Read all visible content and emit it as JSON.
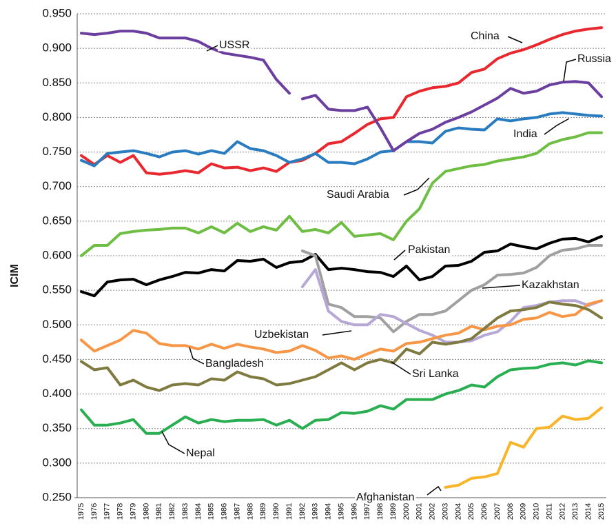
{
  "chart_data": {
    "type": "line",
    "y_label": "ICIM",
    "categories": [
      "1975",
      "1976",
      "1977",
      "1978",
      "1979",
      "1980",
      "1981",
      "1982",
      "1983",
      "1984",
      "1985",
      "1986",
      "1987",
      "1988",
      "1989",
      "1990",
      "1991",
      "1992",
      "1993",
      "1994",
      "1995",
      "1996",
      "1997",
      "1998",
      "1999",
      "2000",
      "2001",
      "2002",
      "2003",
      "2004",
      "2005",
      "2006",
      "2007",
      "2008",
      "2009",
      "2010",
      "2011",
      "2012",
      "2013",
      "2014",
      "2015"
    ],
    "ylim": [
      0.25,
      0.95
    ],
    "yticks": [
      {
        "value": 0.25,
        "label": "0.250"
      },
      {
        "value": 0.3,
        "label": "0.300"
      },
      {
        "value": 0.35,
        "label": "0.350"
      },
      {
        "value": 0.4,
        "label": "0.400"
      },
      {
        "value": 0.45,
        "label": "0.450"
      },
      {
        "value": 0.5,
        "label": "0.500"
      },
      {
        "value": 0.55,
        "label": "0.550"
      },
      {
        "value": 0.6,
        "label": "0.600"
      },
      {
        "value": 0.65,
        "label": "0.650"
      },
      {
        "value": 0.7,
        "label": "0.700"
      },
      {
        "value": 0.75,
        "label": "0.750"
      },
      {
        "value": 0.8,
        "label": "0.800"
      },
      {
        "value": 0.85,
        "label": "0.850"
      },
      {
        "value": 0.9,
        "label": "0.900"
      },
      {
        "value": 0.95,
        "label": "0.950"
      }
    ],
    "grid": true,
    "series": [
      {
        "name": "China",
        "color": "#e8282e",
        "values": [
          0.745,
          0.732,
          0.745,
          0.735,
          0.745,
          0.72,
          0.718,
          0.72,
          0.723,
          0.72,
          0.733,
          0.727,
          0.728,
          0.723,
          0.727,
          0.722,
          0.735,
          0.738,
          0.748,
          0.762,
          0.765,
          0.777,
          0.79,
          0.798,
          0.8,
          0.83,
          0.838,
          0.843,
          0.845,
          0.85,
          0.865,
          0.87,
          0.885,
          0.893,
          0.898,
          0.905,
          0.913,
          0.92,
          0.925,
          0.928,
          0.93
        ]
      },
      {
        "name": "India",
        "color": "#2a7cc1",
        "values": [
          0.738,
          0.73,
          0.748,
          0.75,
          0.752,
          0.748,
          0.743,
          0.75,
          0.752,
          0.747,
          0.752,
          0.748,
          0.765,
          0.755,
          0.752,
          0.745,
          0.735,
          0.74,
          0.748,
          0.735,
          0.735,
          0.733,
          0.74,
          0.75,
          0.752,
          0.765,
          0.765,
          0.763,
          0.78,
          0.785,
          0.783,
          0.782,
          0.798,
          0.795,
          0.798,
          0.8,
          0.805,
          0.807,
          0.805,
          0.803,
          0.802
        ]
      },
      {
        "name": "USSR",
        "color": "#6b3fa0",
        "values": [
          0.922,
          0.92,
          0.922,
          0.925,
          0.925,
          0.922,
          0.915,
          0.915,
          0.915,
          0.91,
          0.9,
          0.893,
          0.89,
          0.887,
          0.883,
          0.855,
          0.835,
          null,
          null,
          null,
          null,
          null,
          null,
          null,
          null,
          null,
          null,
          null,
          null,
          null,
          null,
          null,
          null,
          null,
          null,
          null,
          null,
          null,
          null,
          null,
          null
        ]
      },
      {
        "name": "Russia",
        "color": "#6b3fa0",
        "values": [
          null,
          null,
          null,
          null,
          null,
          null,
          null,
          null,
          null,
          null,
          null,
          null,
          null,
          null,
          null,
          null,
          null,
          0.827,
          0.832,
          0.812,
          0.81,
          0.81,
          0.815,
          0.785,
          0.752,
          0.765,
          0.777,
          0.783,
          0.793,
          0.8,
          0.808,
          0.818,
          0.828,
          0.842,
          0.835,
          0.838,
          0.847,
          0.851,
          0.852,
          0.85,
          0.83
        ]
      },
      {
        "name": "Saudi Arabia",
        "color": "#6fbe44",
        "values": [
          0.6,
          0.615,
          0.615,
          0.632,
          0.635,
          0.637,
          0.638,
          0.64,
          0.64,
          0.633,
          0.642,
          0.633,
          0.647,
          0.635,
          0.642,
          0.637,
          0.657,
          0.635,
          0.638,
          0.633,
          0.648,
          0.628,
          0.63,
          0.632,
          0.623,
          0.65,
          0.668,
          0.705,
          0.722,
          0.726,
          0.73,
          0.732,
          0.737,
          0.74,
          0.743,
          0.748,
          0.762,
          0.768,
          0.772,
          0.778,
          0.778
        ]
      },
      {
        "name": "Pakistan",
        "color": "#000000",
        "values": [
          0.548,
          0.542,
          0.562,
          0.565,
          0.566,
          0.558,
          0.565,
          0.57,
          0.576,
          0.575,
          0.58,
          0.578,
          0.593,
          0.592,
          0.595,
          0.583,
          0.59,
          0.592,
          0.602,
          0.58,
          0.582,
          0.58,
          0.577,
          0.576,
          0.57,
          0.585,
          0.565,
          0.57,
          0.585,
          0.586,
          0.592,
          0.605,
          0.607,
          0.617,
          0.613,
          0.61,
          0.618,
          0.624,
          0.625,
          0.62,
          0.628
        ]
      },
      {
        "name": "Kazakhstan",
        "color": "#a0a0a0",
        "values": [
          null,
          null,
          null,
          null,
          null,
          null,
          null,
          null,
          null,
          null,
          null,
          null,
          null,
          null,
          null,
          null,
          null,
          0.607,
          0.6,
          0.53,
          0.525,
          0.512,
          0.512,
          0.51,
          0.49,
          0.505,
          0.515,
          0.515,
          0.52,
          0.535,
          0.55,
          0.558,
          0.572,
          0.573,
          0.575,
          0.583,
          0.6,
          0.608,
          0.61,
          0.615,
          0.615
        ]
      },
      {
        "name": "Uzbekistan",
        "color": "#b6a7d6",
        "values": [
          null,
          null,
          null,
          null,
          null,
          null,
          null,
          null,
          null,
          null,
          null,
          null,
          null,
          null,
          null,
          null,
          null,
          0.555,
          0.58,
          0.52,
          0.505,
          0.5,
          0.5,
          0.515,
          0.512,
          0.502,
          0.492,
          0.485,
          0.475,
          0.475,
          0.477,
          0.485,
          0.49,
          0.505,
          0.525,
          0.528,
          0.533,
          0.535,
          0.535,
          0.528,
          0.535
        ]
      },
      {
        "name": "Bangladesh",
        "color": "#f79646",
        "values": [
          0.478,
          0.462,
          0.47,
          0.478,
          0.492,
          0.488,
          0.473,
          0.47,
          0.47,
          0.465,
          0.472,
          0.466,
          0.472,
          0.468,
          0.465,
          0.46,
          0.462,
          0.47,
          0.463,
          0.452,
          0.455,
          0.45,
          0.458,
          0.465,
          0.462,
          0.473,
          0.475,
          0.48,
          0.485,
          0.488,
          0.498,
          0.493,
          0.498,
          0.5,
          0.508,
          0.51,
          0.518,
          0.512,
          0.515,
          0.53,
          0.535
        ]
      },
      {
        "name": "Sri Lanka",
        "color": "#7f7a3f",
        "values": [
          0.447,
          0.435,
          0.438,
          0.413,
          0.42,
          0.41,
          0.405,
          0.413,
          0.415,
          0.413,
          0.422,
          0.42,
          0.432,
          0.425,
          0.422,
          0.413,
          0.415,
          0.42,
          0.425,
          0.435,
          0.445,
          0.435,
          0.445,
          0.45,
          0.445,
          0.465,
          0.458,
          0.475,
          0.472,
          0.475,
          0.48,
          0.495,
          0.51,
          0.52,
          0.522,
          0.525,
          0.533,
          0.53,
          0.528,
          0.522,
          0.51
        ]
      },
      {
        "name": "Nepal",
        "color": "#2aae52",
        "values": [
          0.377,
          0.355,
          0.355,
          0.358,
          0.363,
          0.343,
          0.343,
          0.355,
          0.367,
          0.358,
          0.363,
          0.36,
          0.362,
          0.362,
          0.363,
          0.355,
          0.362,
          0.35,
          0.362,
          0.363,
          0.373,
          0.372,
          0.375,
          0.383,
          0.378,
          0.392,
          0.392,
          0.392,
          0.4,
          0.405,
          0.413,
          0.41,
          0.425,
          0.435,
          0.437,
          0.438,
          0.443,
          0.445,
          0.442,
          0.448,
          0.445
        ]
      },
      {
        "name": "Afghanistan",
        "color": "#f9b52a",
        "values": [
          null,
          null,
          null,
          null,
          null,
          null,
          null,
          null,
          null,
          null,
          null,
          null,
          null,
          null,
          null,
          null,
          null,
          null,
          null,
          null,
          null,
          null,
          null,
          null,
          null,
          null,
          null,
          null,
          0.265,
          0.268,
          0.278,
          0.28,
          0.285,
          0.33,
          0.323,
          0.35,
          0.352,
          0.368,
          0.363,
          0.365,
          0.38
        ]
      }
    ]
  }
}
